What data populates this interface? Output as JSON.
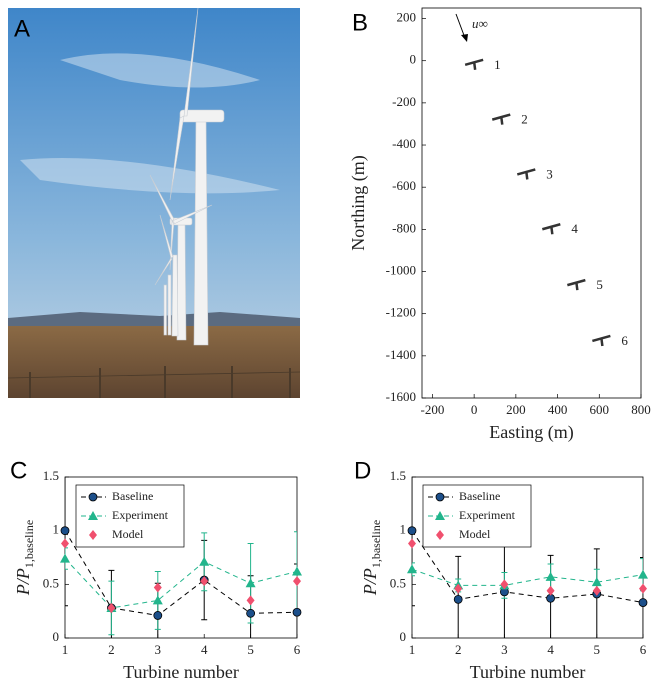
{
  "photo": {
    "panel": "A"
  },
  "chart_data": [
    {
      "type": "scatter",
      "panel": "B",
      "xlabel": "Easting (m)",
      "ylabel": "Northing (m)",
      "annotation": "u∞",
      "x": [
        0,
        130,
        250,
        370,
        490,
        610
      ],
      "values": [
        -10,
        -270,
        -530,
        -790,
        -1055,
        -1320
      ],
      "point_labels": [
        "1",
        "2",
        "3",
        "4",
        "5",
        "6"
      ],
      "color": "#333333",
      "xlim": [
        -250,
        800
      ],
      "xticks": [
        -200,
        0,
        200,
        400,
        600,
        800
      ],
      "ylim": [
        -1600,
        250
      ],
      "yticks": [
        200,
        0,
        -200,
        -400,
        -600,
        -800,
        -1000,
        -1200,
        -1400,
        -1600
      ]
    },
    {
      "type": "line",
      "panel": "C",
      "xlabel": "Turbine number",
      "ylabel": "P/P",
      "ylabel_sub": "1,baseline",
      "x": [
        1,
        2,
        3,
        4,
        5,
        6
      ],
      "xlim": [
        1,
        6
      ],
      "xticks": [
        1,
        2,
        3,
        4,
        5,
        6
      ],
      "ylim": [
        0,
        1.5
      ],
      "yticks": [
        0,
        0.5,
        1,
        1.5
      ],
      "series": [
        {
          "name": "Baseline",
          "color": "#1c4f8a",
          "marker": "circle",
          "linestyle": "dashed",
          "line_color": "#000000",
          "values": [
            1.0,
            0.28,
            0.21,
            0.54,
            0.23,
            0.24
          ],
          "errors": [
            0.7,
            0.35,
            0.3,
            0.37,
            0.35,
            0.45
          ]
        },
        {
          "name": "Experiment",
          "color": "#22b58c",
          "marker": "triangle",
          "linestyle": "dashed",
          "line_color": "#22b58c",
          "values": [
            0.74,
            0.28,
            0.35,
            0.71,
            0.51,
            0.62
          ],
          "errors": [
            0.1,
            0.25,
            0.27,
            0.27,
            0.37,
            0.37
          ]
        },
        {
          "name": "Model",
          "color": "#f0506e",
          "marker": "diamond",
          "linestyle": "none",
          "line_color": "#f0506e",
          "values": [
            0.88,
            0.28,
            0.47,
            0.53,
            0.35,
            0.53
          ]
        }
      ]
    },
    {
      "type": "line",
      "panel": "D",
      "xlabel": "Turbine number",
      "ylabel": "P/P",
      "ylabel_sub": "1,baseline",
      "x": [
        1,
        2,
        3,
        4,
        5,
        6
      ],
      "xlim": [
        1,
        6
      ],
      "xticks": [
        1,
        2,
        3,
        4,
        5,
        6
      ],
      "ylim": [
        0,
        1.5
      ],
      "yticks": [
        0,
        0.5,
        1,
        1.5
      ],
      "series": [
        {
          "name": "Baseline",
          "color": "#1c4f8a",
          "marker": "circle",
          "linestyle": "dashed",
          "line_color": "#000000",
          "values": [
            1.0,
            0.36,
            0.43,
            0.37,
            0.41,
            0.33
          ],
          "errors": [
            0.7,
            0.4,
            0.5,
            0.4,
            0.42,
            0.42
          ]
        },
        {
          "name": "Experiment",
          "color": "#22b58c",
          "marker": "triangle",
          "linestyle": "dashed",
          "line_color": "#22b58c",
          "values": [
            0.64,
            0.49,
            0.49,
            0.57,
            0.52,
            0.59
          ],
          "errors": [
            0.06,
            0.06,
            0.12,
            0.12,
            0.12,
            0.15
          ]
        },
        {
          "name": "Model",
          "color": "#f0506e",
          "marker": "diamond",
          "linestyle": "none",
          "line_color": "#f0506e",
          "values": [
            0.88,
            0.46,
            0.5,
            0.44,
            0.44,
            0.46
          ]
        }
      ]
    }
  ]
}
